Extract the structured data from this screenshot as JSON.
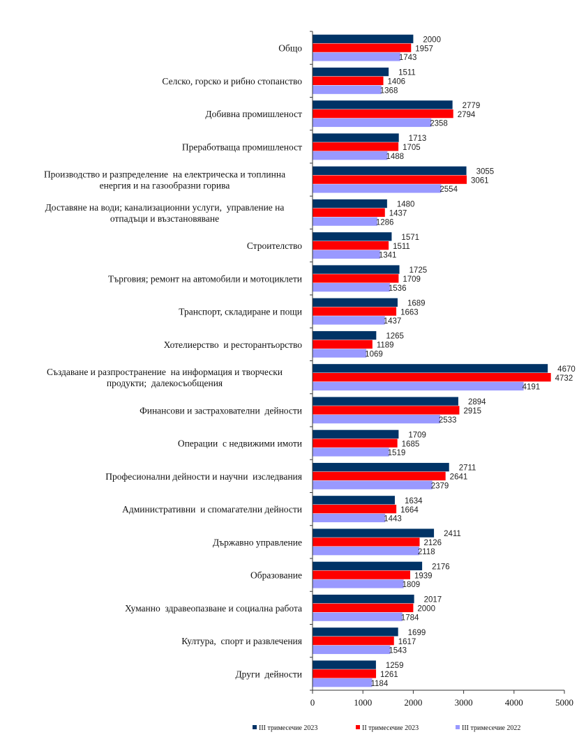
{
  "chart_data": {
    "type": "bar",
    "orientation": "horizontal",
    "title": "",
    "xlabel": "",
    "ylabel": "",
    "xlim": [
      0,
      5000
    ],
    "x_ticks": [
      "0",
      "1000",
      "2000",
      "3000",
      "4000",
      "5000"
    ],
    "grid": false,
    "legend_position": "bottom",
    "categories": [
      [
        "Общо"
      ],
      [
        "Селско, горско и рибно стопанство"
      ],
      [
        "Добивна промишленост"
      ],
      [
        "Преработваща промишленост"
      ],
      [
        "Производство и разпределение  на електрическа и топлинна",
        "енергия и на газообразни горива"
      ],
      [
        "Доставяне на води; канализационни услуги,  управление на",
        "отпадъци и възстановяване"
      ],
      [
        "Строителство"
      ],
      [
        "Търговия; ремонт на автомобили и мотоциклети"
      ],
      [
        "Транспорт, складиране и пощи"
      ],
      [
        "Хотелиерство  и ресторантьорство"
      ],
      [
        "Създаване и разпространение  на информация и творчески",
        "продукти;  далекосъобщения"
      ],
      [
        "Финансови и застрахователни  дейности"
      ],
      [
        "Операции  с недвижими имоти"
      ],
      [
        "Професионални дейности и научни  изследвания"
      ],
      [
        "Административни  и спомагателни дейности"
      ],
      [
        "Държавно управление"
      ],
      [
        "Образование"
      ],
      [
        "Хуманно  здравеопазване и социална работа"
      ],
      [
        "Култура,  спорт и развлечения"
      ],
      [
        "Други  дейности"
      ]
    ],
    "series": [
      {
        "name": "III тримесечие 2023",
        "color": "#003366",
        "values": [
          2000,
          1511,
          2779,
          1713,
          3055,
          1480,
          1571,
          1725,
          1689,
          1265,
          4670,
          2894,
          1709,
          2711,
          1634,
          2411,
          2176,
          2017,
          1699,
          1259
        ]
      },
      {
        "name": "II тримесечие 2023",
        "color": "#ff0000",
        "values": [
          1957,
          1406,
          2794,
          1705,
          3061,
          1437,
          1511,
          1709,
          1663,
          1189,
          4732,
          2915,
          1685,
          2641,
          1664,
          2126,
          1939,
          2000,
          1617,
          1261
        ]
      },
      {
        "name": "III тримесечие 2022",
        "color": "#9999ff",
        "values": [
          1743,
          1368,
          2358,
          1488,
          2554,
          1286,
          1341,
          1536,
          1437,
          1069,
          4191,
          2533,
          1519,
          2379,
          1443,
          2118,
          1809,
          1784,
          1543,
          1184
        ]
      }
    ]
  }
}
